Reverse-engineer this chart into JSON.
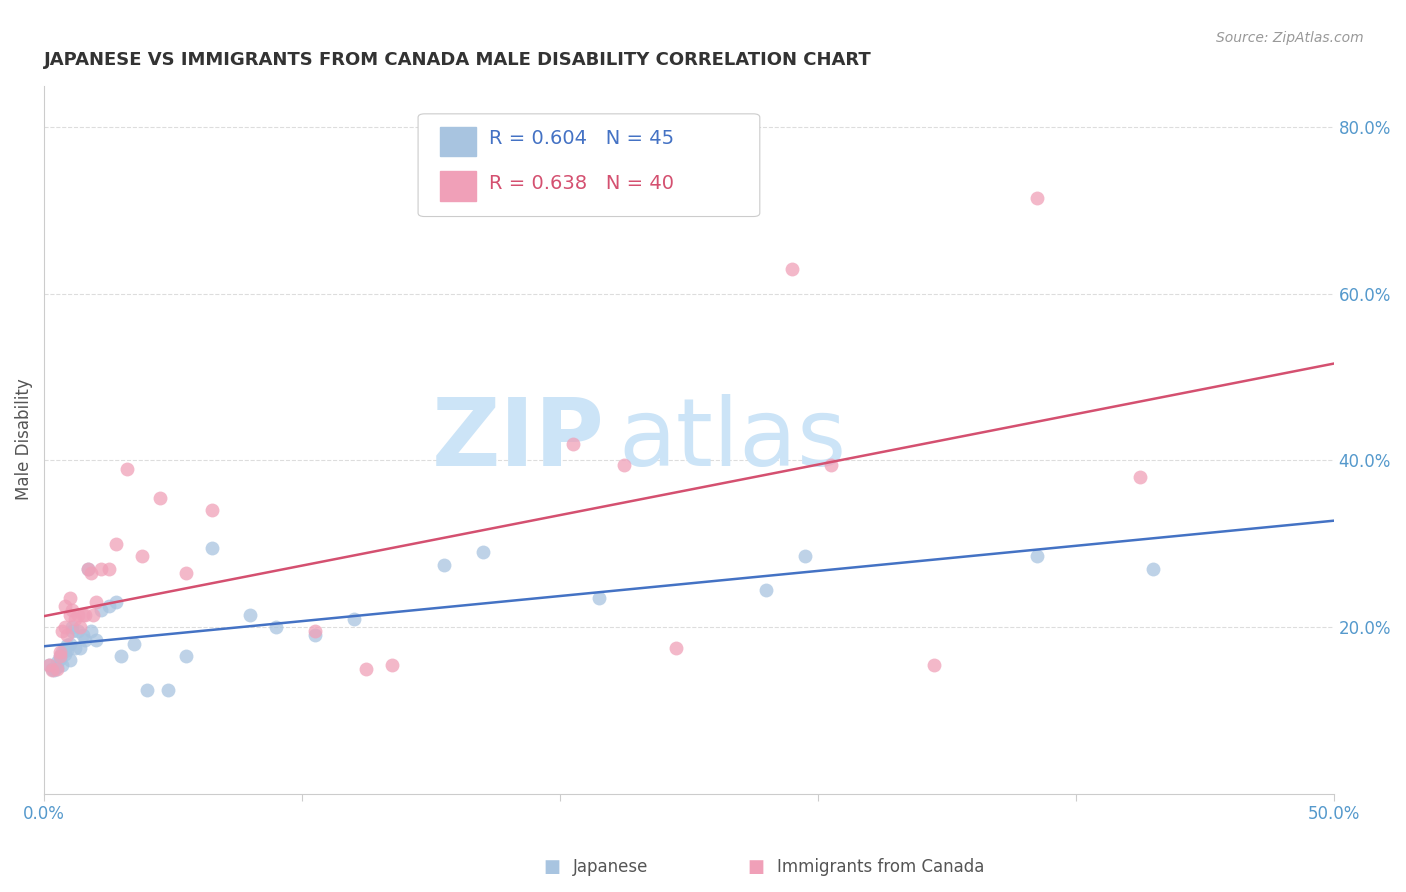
{
  "title": "JAPANESE VS IMMIGRANTS FROM CANADA MALE DISABILITY CORRELATION CHART",
  "source": "Source: ZipAtlas.com",
  "ylabel": "Male Disability",
  "xlim": [
    0.0,
    0.5
  ],
  "ylim": [
    0.0,
    0.85
  ],
  "xticks": [
    0.0,
    0.1,
    0.2,
    0.3,
    0.4,
    0.5
  ],
  "xticklabels": [
    "0.0%",
    "",
    "",
    "",
    "",
    "50.0%"
  ],
  "yticks": [
    0.2,
    0.4,
    0.6,
    0.8
  ],
  "yticklabels": [
    "20.0%",
    "40.0%",
    "60.0%",
    "80.0%"
  ],
  "japanese_color": "#a8c4e0",
  "canada_color": "#f0a0b8",
  "japanese_line_color": "#4472c4",
  "canada_line_color": "#d45070",
  "background_color": "#ffffff",
  "grid_color": "#dddddd",
  "tick_label_color": "#5599cc",
  "watermark_zip_color": "#cce0f0",
  "watermark_atlas_color": "#c0d8e8",
  "japanese_x": [
    0.002,
    0.003,
    0.004,
    0.005,
    0.005,
    0.006,
    0.006,
    0.007,
    0.007,
    0.008,
    0.008,
    0.009,
    0.009,
    0.01,
    0.01,
    0.011,
    0.011,
    0.012,
    0.013,
    0.014,
    0.015,
    0.016,
    0.017,
    0.018,
    0.02,
    0.022,
    0.025,
    0.028,
    0.03,
    0.035,
    0.04,
    0.048,
    0.055,
    0.065,
    0.08,
    0.09,
    0.105,
    0.12,
    0.155,
    0.17,
    0.215,
    0.28,
    0.295,
    0.385,
    0.43
  ],
  "japanese_y": [
    0.155,
    0.15,
    0.148,
    0.152,
    0.158,
    0.162,
    0.165,
    0.155,
    0.17,
    0.175,
    0.168,
    0.172,
    0.178,
    0.18,
    0.16,
    0.195,
    0.2,
    0.175,
    0.195,
    0.175,
    0.19,
    0.185,
    0.27,
    0.195,
    0.185,
    0.22,
    0.225,
    0.23,
    0.165,
    0.18,
    0.125,
    0.125,
    0.165,
    0.295,
    0.215,
    0.2,
    0.19,
    0.21,
    0.275,
    0.29,
    0.235,
    0.245,
    0.285,
    0.285,
    0.27
  ],
  "canada_x": [
    0.002,
    0.003,
    0.005,
    0.006,
    0.006,
    0.007,
    0.008,
    0.008,
    0.009,
    0.01,
    0.01,
    0.011,
    0.012,
    0.013,
    0.014,
    0.015,
    0.016,
    0.017,
    0.018,
    0.019,
    0.02,
    0.022,
    0.025,
    0.028,
    0.032,
    0.038,
    0.045,
    0.055,
    0.065,
    0.105,
    0.125,
    0.135,
    0.205,
    0.225,
    0.245,
    0.29,
    0.305,
    0.345,
    0.385,
    0.425
  ],
  "canada_y": [
    0.155,
    0.148,
    0.15,
    0.165,
    0.17,
    0.195,
    0.2,
    0.225,
    0.19,
    0.235,
    0.215,
    0.22,
    0.21,
    0.215,
    0.2,
    0.215,
    0.215,
    0.27,
    0.265,
    0.215,
    0.23,
    0.27,
    0.27,
    0.3,
    0.39,
    0.285,
    0.355,
    0.265,
    0.34,
    0.195,
    0.15,
    0.155,
    0.42,
    0.395,
    0.175,
    0.63,
    0.395,
    0.155,
    0.715,
    0.38
  ]
}
